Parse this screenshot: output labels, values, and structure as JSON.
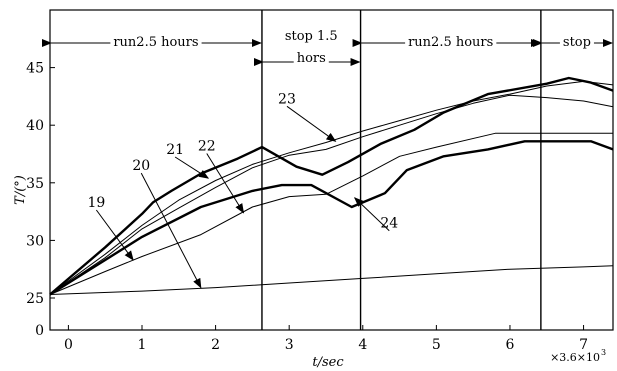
{
  "chart_data": {
    "type": "line",
    "title": "",
    "xlabel": "t/sec",
    "ylabel": "T/(°)",
    "x_multiplier": "×3.6×10",
    "x_multiplier_exp": "3",
    "xlim": [
      -0.25,
      7.4
    ],
    "ylim": [
      0,
      50
    ],
    "x_ticks": [
      0,
      1,
      2,
      3,
      4,
      5,
      6,
      7
    ],
    "x_tick_labels": [
      "0",
      "1",
      "2",
      "3",
      "4",
      "5",
      "6",
      "7"
    ],
    "y_ticks": [
      0,
      25,
      30,
      35,
      40,
      45
    ],
    "y_tick_labels": [
      "0",
      "25",
      "30",
      "35",
      "40",
      "45"
    ],
    "grid": false,
    "phases": [
      {
        "label": "run2.5 hours",
        "start": -0.25,
        "end": 2.63
      },
      {
        "label": "stop 1.5",
        "label2": "hors",
        "start": 2.63,
        "end": 3.97
      },
      {
        "label": "run2.5 hours",
        "start": 3.97,
        "end": 6.42
      },
      {
        "label": "stop",
        "start": 6.42,
        "end": 7.4
      }
    ],
    "series": [
      {
        "name": "19",
        "style": "thin",
        "x": [
          -0.25,
          0.5,
          1,
          1.8,
          2.5,
          3,
          3.5,
          4,
          4.5,
          5,
          5.8,
          6.5,
          7,
          7.4
        ],
        "y": [
          25.3,
          27.3,
          28.6,
          30.5,
          32.9,
          33.8,
          34,
          35.6,
          37.3,
          38.1,
          39.3,
          39.3,
          39.3,
          39.3
        ]
      },
      {
        "name": "20",
        "style": "thin",
        "x": [
          -0.25,
          1,
          2,
          3,
          4,
          5,
          6,
          7,
          7.4
        ],
        "y": [
          25.3,
          25.6,
          25.9,
          26.3,
          26.7,
          27.1,
          27.5,
          27.7,
          27.8
        ]
      },
      {
        "name": "21",
        "style": "bold",
        "x": [
          -0.25,
          0.5,
          1,
          1.15,
          1.4,
          1.8,
          2.3,
          2.63,
          3.1,
          3.45,
          3.8,
          4.25,
          4.7,
          5.1,
          5.7,
          6.5,
          6.8,
          7.1,
          7.4
        ],
        "y": [
          25.3,
          29.4,
          32.3,
          33.3,
          34.3,
          35.8,
          37.1,
          38.1,
          36.4,
          35.7,
          36.8,
          38.4,
          39.6,
          41.1,
          42.7,
          43.6,
          44.1,
          43.7,
          43
        ]
      },
      {
        "name": "22",
        "style": "thin",
        "x": [
          -0.25,
          0.5,
          1,
          1.5,
          2,
          2.5,
          3,
          3.5,
          4,
          4.5,
          5,
          5.5,
          6,
          6.5,
          7,
          7.4
        ],
        "y": [
          25.3,
          28.5,
          31,
          32.8,
          34.6,
          36.3,
          37.4,
          37.9,
          39,
          40,
          41,
          41.9,
          42.6,
          42.4,
          42.1,
          41.6
        ]
      },
      {
        "name": "23",
        "style": "thin",
        "x": [
          -0.25,
          0.5,
          1,
          1.5,
          2,
          2.5,
          3,
          3.5,
          4,
          4.5,
          5,
          5.5,
          6,
          6.5,
          7,
          7.4
        ],
        "y": [
          25.3,
          28.8,
          31.3,
          33.5,
          35.2,
          36.6,
          37.6,
          38.5,
          39.5,
          40.4,
          41.3,
          42.1,
          42.7,
          43.4,
          43.8,
          43.5
        ]
      },
      {
        "name": "24",
        "style": "bold",
        "x": [
          -0.25,
          0.5,
          1,
          1.8,
          2.5,
          2.9,
          3.3,
          3.85,
          4.3,
          4.6,
          5.1,
          5.7,
          6.2,
          6.5,
          7.1,
          7.4
        ],
        "y": [
          25.3,
          28.3,
          30.3,
          32.9,
          34.3,
          34.8,
          34.8,
          32.9,
          34.1,
          36.1,
          37.3,
          37.9,
          38.6,
          38.6,
          38.6,
          37.9
        ]
      }
    ],
    "callouts": [
      {
        "label": "19",
        "label_at": [
          0.38,
          32.9
        ],
        "arrow_to": [
          0.88,
          28.3
        ]
      },
      {
        "label": "20",
        "label_at": [
          0.99,
          36.1
        ],
        "arrow_to": [
          1.8,
          25.9
        ]
      },
      {
        "label": "21",
        "label_at": [
          1.45,
          37.5
        ],
        "arrow_to": [
          1.9,
          35.4
        ]
      },
      {
        "label": "22",
        "label_at": [
          1.88,
          37.8
        ],
        "arrow_to": [
          2.38,
          32.4
        ]
      },
      {
        "label": "23",
        "label_at": [
          2.97,
          41.9
        ],
        "arrow_to": [
          3.63,
          38.6
        ]
      },
      {
        "label": "24",
        "label_at": [
          4.36,
          31.1
        ],
        "arrow_to": [
          3.89,
          33.7
        ]
      }
    ]
  }
}
